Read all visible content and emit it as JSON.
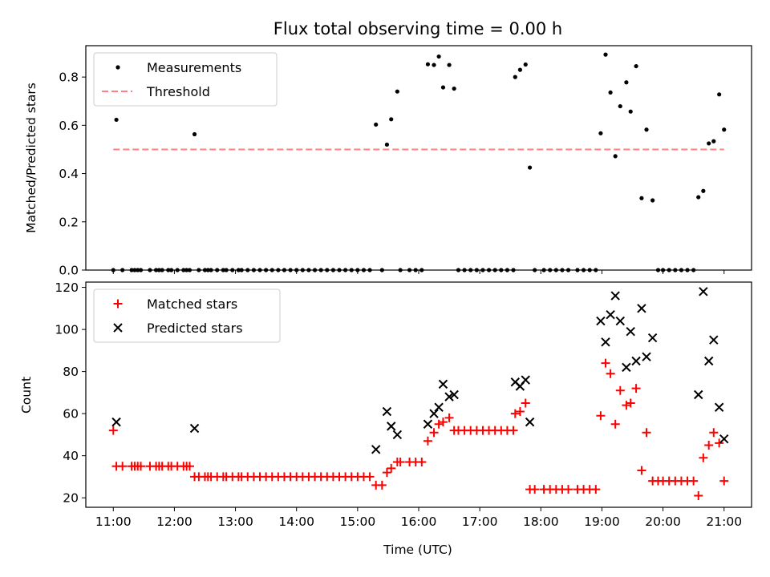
{
  "chart_data": [
    {
      "type": "scatter",
      "title": "Flux total observing time = 0.00 h",
      "ylabel": "Matched/Predicted stars",
      "xlabel": "",
      "x_unit": "UTC hour",
      "xlim": [
        10.55,
        21.45
      ],
      "ylim": [
        0,
        0.93
      ],
      "yticks": [
        0.0,
        0.2,
        0.4,
        0.6,
        0.8
      ],
      "ytick_labels": [
        "0.0",
        "0.2",
        "0.4",
        "0.6",
        "0.8"
      ],
      "legend_position": "upper-left",
      "grid": false,
      "series": [
        {
          "name": "Measurements",
          "marker": "dot",
          "color": "#000000",
          "points": [
            [
              11.0,
              0.0
            ],
            [
              11.05,
              0.623
            ],
            [
              11.15,
              0.0
            ],
            [
              11.3,
              0.0
            ],
            [
              11.35,
              0.0
            ],
            [
              11.4,
              0.0
            ],
            [
              11.45,
              0.0
            ],
            [
              11.6,
              0.0
            ],
            [
              11.7,
              0.0
            ],
            [
              11.75,
              0.0
            ],
            [
              11.8,
              0.0
            ],
            [
              11.9,
              0.0
            ],
            [
              11.95,
              0.0
            ],
            [
              12.05,
              0.0
            ],
            [
              12.15,
              0.0
            ],
            [
              12.2,
              0.0
            ],
            [
              12.25,
              0.0
            ],
            [
              12.33,
              0.563
            ],
            [
              12.4,
              0.0
            ],
            [
              12.5,
              0.0
            ],
            [
              12.55,
              0.0
            ],
            [
              12.6,
              0.0
            ],
            [
              12.7,
              0.0
            ],
            [
              12.8,
              0.0
            ],
            [
              12.85,
              0.0
            ],
            [
              12.95,
              0.0
            ],
            [
              13.05,
              0.0
            ],
            [
              13.1,
              0.0
            ],
            [
              13.2,
              0.0
            ],
            [
              13.3,
              0.0
            ],
            [
              13.4,
              0.0
            ],
            [
              13.5,
              0.0
            ],
            [
              13.6,
              0.0
            ],
            [
              13.7,
              0.0
            ],
            [
              13.8,
              0.0
            ],
            [
              13.9,
              0.0
            ],
            [
              14.0,
              0.0
            ],
            [
              14.1,
              0.0
            ],
            [
              14.2,
              0.0
            ],
            [
              14.3,
              0.0
            ],
            [
              14.4,
              0.0
            ],
            [
              14.5,
              0.0
            ],
            [
              14.6,
              0.0
            ],
            [
              14.7,
              0.0
            ],
            [
              14.8,
              0.0
            ],
            [
              14.9,
              0.0
            ],
            [
              15.0,
              0.0
            ],
            [
              15.1,
              0.0
            ],
            [
              15.2,
              0.0
            ],
            [
              15.3,
              0.603
            ],
            [
              15.4,
              0.0
            ],
            [
              15.48,
              0.52
            ],
            [
              15.55,
              0.625
            ],
            [
              15.65,
              0.74
            ],
            [
              15.7,
              0.0
            ],
            [
              15.85,
              0.0
            ],
            [
              15.95,
              0.0
            ],
            [
              16.05,
              0.0
            ],
            [
              16.15,
              0.853
            ],
            [
              16.25,
              0.85
            ],
            [
              16.33,
              0.885
            ],
            [
              16.4,
              0.757
            ],
            [
              16.5,
              0.85
            ],
            [
              16.58,
              0.752
            ],
            [
              16.65,
              0.0
            ],
            [
              16.75,
              0.0
            ],
            [
              16.85,
              0.0
            ],
            [
              16.95,
              0.0
            ],
            [
              17.05,
              0.0
            ],
            [
              17.15,
              0.0
            ],
            [
              17.25,
              0.0
            ],
            [
              17.35,
              0.0
            ],
            [
              17.45,
              0.0
            ],
            [
              17.55,
              0.0
            ],
            [
              17.58,
              0.8
            ],
            [
              17.66,
              0.83
            ],
            [
              17.75,
              0.852
            ],
            [
              17.82,
              0.425
            ],
            [
              17.9,
              0.0
            ],
            [
              18.05,
              0.0
            ],
            [
              18.15,
              0.0
            ],
            [
              18.25,
              0.0
            ],
            [
              18.35,
              0.0
            ],
            [
              18.45,
              0.0
            ],
            [
              18.6,
              0.0
            ],
            [
              18.7,
              0.0
            ],
            [
              18.8,
              0.0
            ],
            [
              18.9,
              0.0
            ],
            [
              18.98,
              0.567
            ],
            [
              19.06,
              0.893
            ],
            [
              19.14,
              0.736
            ],
            [
              19.22,
              0.472
            ],
            [
              19.3,
              0.679
            ],
            [
              19.4,
              0.778
            ],
            [
              19.47,
              0.657
            ],
            [
              19.56,
              0.845
            ],
            [
              19.65,
              0.298
            ],
            [
              19.73,
              0.582
            ],
            [
              19.83,
              0.289
            ],
            [
              19.92,
              0.0
            ],
            [
              20.0,
              0.0
            ],
            [
              20.1,
              0.0
            ],
            [
              20.2,
              0.0
            ],
            [
              20.3,
              0.0
            ],
            [
              20.4,
              0.0
            ],
            [
              20.5,
              0.0
            ],
            [
              20.58,
              0.302
            ],
            [
              20.66,
              0.328
            ],
            [
              20.75,
              0.525
            ],
            [
              20.83,
              0.534
            ],
            [
              20.92,
              0.728
            ],
            [
              21.0,
              0.582
            ]
          ]
        },
        {
          "name": "Threshold",
          "marker": "dashed-line",
          "color": "#ff8080",
          "points": [
            [
              11.0,
              0.5
            ],
            [
              21.0,
              0.5
            ]
          ]
        }
      ]
    },
    {
      "type": "scatter",
      "title": "",
      "ylabel": "Count",
      "xlabel": "Time (UTC)",
      "x_unit": "UTC hour",
      "xlim": [
        10.55,
        21.45
      ],
      "ylim": [
        15.5,
        122.5
      ],
      "xticks": [
        11,
        12,
        13,
        14,
        15,
        16,
        17,
        18,
        19,
        20,
        21
      ],
      "xtick_labels": [
        "11:00",
        "12:00",
        "13:00",
        "14:00",
        "15:00",
        "16:00",
        "17:00",
        "18:00",
        "19:00",
        "20:00",
        "21:00"
      ],
      "yticks": [
        20,
        40,
        60,
        80,
        100,
        120
      ],
      "ytick_labels": [
        "20",
        "40",
        "60",
        "80",
        "100",
        "120"
      ],
      "legend_position": "upper-left",
      "grid": false,
      "series": [
        {
          "name": "Matched stars",
          "marker": "plus",
          "color": "#ff0000",
          "points": [
            [
              11.0,
              52
            ],
            [
              11.05,
              35
            ],
            [
              11.15,
              35
            ],
            [
              11.3,
              35
            ],
            [
              11.35,
              35
            ],
            [
              11.4,
              35
            ],
            [
              11.45,
              35
            ],
            [
              11.6,
              35
            ],
            [
              11.7,
              35
            ],
            [
              11.75,
              35
            ],
            [
              11.8,
              35
            ],
            [
              11.9,
              35
            ],
            [
              11.95,
              35
            ],
            [
              12.05,
              35
            ],
            [
              12.15,
              35
            ],
            [
              12.2,
              35
            ],
            [
              12.25,
              35
            ],
            [
              12.33,
              30
            ],
            [
              12.4,
              30
            ],
            [
              12.5,
              30
            ],
            [
              12.55,
              30
            ],
            [
              12.6,
              30
            ],
            [
              12.7,
              30
            ],
            [
              12.8,
              30
            ],
            [
              12.85,
              30
            ],
            [
              12.95,
              30
            ],
            [
              13.05,
              30
            ],
            [
              13.1,
              30
            ],
            [
              13.2,
              30
            ],
            [
              13.3,
              30
            ],
            [
              13.4,
              30
            ],
            [
              13.5,
              30
            ],
            [
              13.6,
              30
            ],
            [
              13.7,
              30
            ],
            [
              13.8,
              30
            ],
            [
              13.9,
              30
            ],
            [
              14.0,
              30
            ],
            [
              14.1,
              30
            ],
            [
              14.2,
              30
            ],
            [
              14.3,
              30
            ],
            [
              14.4,
              30
            ],
            [
              14.5,
              30
            ],
            [
              14.6,
              30
            ],
            [
              14.7,
              30
            ],
            [
              14.8,
              30
            ],
            [
              14.9,
              30
            ],
            [
              15.0,
              30
            ],
            [
              15.1,
              30
            ],
            [
              15.2,
              30
            ],
            [
              15.3,
              26
            ],
            [
              15.4,
              26
            ],
            [
              15.48,
              32
            ],
            [
              15.55,
              34
            ],
            [
              15.65,
              37
            ],
            [
              15.7,
              37
            ],
            [
              15.85,
              37
            ],
            [
              15.95,
              37
            ],
            [
              16.05,
              37
            ],
            [
              16.15,
              47
            ],
            [
              16.25,
              51
            ],
            [
              16.33,
              55
            ],
            [
              16.4,
              56
            ],
            [
              16.5,
              58
            ],
            [
              16.58,
              52
            ],
            [
              16.65,
              52
            ],
            [
              16.75,
              52
            ],
            [
              16.85,
              52
            ],
            [
              16.95,
              52
            ],
            [
              17.05,
              52
            ],
            [
              17.15,
              52
            ],
            [
              17.25,
              52
            ],
            [
              17.35,
              52
            ],
            [
              17.45,
              52
            ],
            [
              17.55,
              52
            ],
            [
              17.58,
              60
            ],
            [
              17.66,
              61
            ],
            [
              17.75,
              65
            ],
            [
              17.82,
              24
            ],
            [
              17.9,
              24
            ],
            [
              18.05,
              24
            ],
            [
              18.15,
              24
            ],
            [
              18.25,
              24
            ],
            [
              18.35,
              24
            ],
            [
              18.45,
              24
            ],
            [
              18.6,
              24
            ],
            [
              18.7,
              24
            ],
            [
              18.8,
              24
            ],
            [
              18.9,
              24
            ],
            [
              18.98,
              59
            ],
            [
              19.06,
              84
            ],
            [
              19.14,
              79
            ],
            [
              19.22,
              55
            ],
            [
              19.3,
              71
            ],
            [
              19.4,
              64
            ],
            [
              19.47,
              65
            ],
            [
              19.56,
              72
            ],
            [
              19.65,
              33
            ],
            [
              19.73,
              51
            ],
            [
              19.83,
              28
            ],
            [
              19.92,
              28
            ],
            [
              20.0,
              28
            ],
            [
              20.1,
              28
            ],
            [
              20.2,
              28
            ],
            [
              20.3,
              28
            ],
            [
              20.4,
              28
            ],
            [
              20.5,
              28
            ],
            [
              20.58,
              21
            ],
            [
              20.66,
              39
            ],
            [
              20.75,
              45
            ],
            [
              20.83,
              51
            ],
            [
              20.92,
              46
            ],
            [
              21.0,
              28
            ]
          ]
        },
        {
          "name": "Predicted stars",
          "marker": "x",
          "color": "#000000",
          "points": [
            [
              11.05,
              56
            ],
            [
              12.33,
              53
            ],
            [
              15.3,
              43
            ],
            [
              15.48,
              61
            ],
            [
              15.55,
              54
            ],
            [
              15.65,
              50
            ],
            [
              16.15,
              55
            ],
            [
              16.25,
              60
            ],
            [
              16.33,
              63
            ],
            [
              16.4,
              74
            ],
            [
              16.5,
              68
            ],
            [
              16.58,
              69
            ],
            [
              17.58,
              75
            ],
            [
              17.66,
              73
            ],
            [
              17.75,
              76
            ],
            [
              17.82,
              56
            ],
            [
              18.98,
              104
            ],
            [
              19.06,
              94
            ],
            [
              19.14,
              107
            ],
            [
              19.22,
              116
            ],
            [
              19.3,
              104
            ],
            [
              19.4,
              82
            ],
            [
              19.47,
              99
            ],
            [
              19.56,
              85
            ],
            [
              19.65,
              110
            ],
            [
              19.73,
              87
            ],
            [
              19.83,
              96
            ],
            [
              20.58,
              69
            ],
            [
              20.66,
              118
            ],
            [
              20.75,
              85
            ],
            [
              20.83,
              95
            ],
            [
              20.92,
              63
            ],
            [
              21.0,
              48
            ]
          ]
        }
      ]
    }
  ]
}
